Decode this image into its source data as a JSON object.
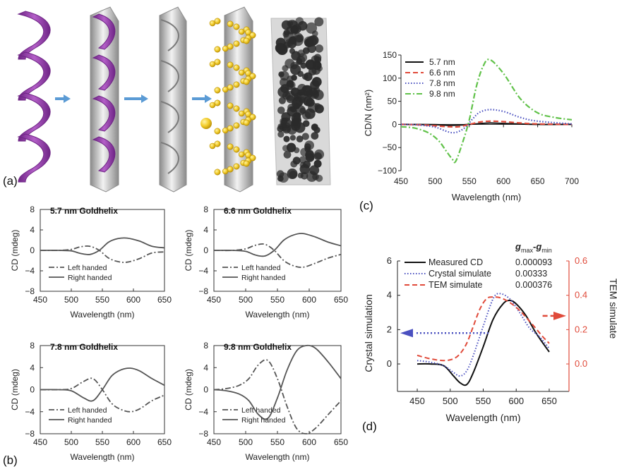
{
  "colors": {
    "purple": "#9b3fb0",
    "purple_dark": "#6e2485",
    "silver": "#c9c9c9",
    "silver_dark": "#8d8d8d",
    "gold": "#f2cc2a",
    "gold_dark": "#b88e08",
    "arrow": "#5b9bd5",
    "tem_bg": "#d9d9d9",
    "tem_particle": "#2b2b2b",
    "line_black": "#111111",
    "dash_red": "#e04a3a",
    "dot_blue": "#4a50c0",
    "dashdot_green": "#61c24a",
    "axis_red": "#e04a3a"
  },
  "panels": {
    "a": "(a)",
    "b": "(b)",
    "c": "(c)",
    "d": "(d)"
  },
  "illustration": {
    "stages": [
      "purple-helix-template",
      "coated-helix",
      "silver-helix",
      "gold-nanoparticle-helix",
      "tem-micrograph"
    ]
  },
  "chart_data": [
    {
      "id": "c",
      "type": "line",
      "xlabel": "Wavelength (nm)",
      "ylabel": "CD/N (nm²)",
      "xlim": [
        450,
        700
      ],
      "ylim": [
        -100,
        150
      ],
      "xticks": [
        450,
        500,
        550,
        600,
        650,
        700
      ],
      "yticks": [
        -100,
        -50,
        0,
        50,
        100,
        150
      ],
      "yticklabels": [
        "−100",
        "−50",
        "0",
        "50",
        "100",
        "150"
      ],
      "legend_position": "top-left",
      "series": [
        {
          "name": "5.7 nm",
          "style": "solid",
          "color": "#111111",
          "x": [
            450,
            500,
            520,
            540,
            560,
            580,
            600,
            650,
            700
          ],
          "y": [
            0,
            -0.5,
            -2,
            -1,
            1,
            3,
            2,
            0,
            0
          ]
        },
        {
          "name": "6.6 nm",
          "style": "dash",
          "color": "#e04a3a",
          "x": [
            450,
            480,
            500,
            520,
            535,
            550,
            565,
            580,
            600,
            625,
            650,
            700
          ],
          "y": [
            0,
            -1,
            -3,
            -5,
            -5,
            0,
            5,
            7,
            6,
            3,
            1,
            0
          ]
        },
        {
          "name": "7.8 nm",
          "style": "dot",
          "color": "#4a50c0",
          "x": [
            450,
            475,
            500,
            515,
            525,
            535,
            545,
            555,
            565,
            580,
            600,
            625,
            650,
            700
          ],
          "y": [
            0,
            -1,
            -6,
            -14,
            -18,
            -15,
            -5,
            12,
            26,
            32,
            28,
            15,
            7,
            1
          ]
        },
        {
          "name": "9.8 nm",
          "style": "dashdot",
          "color": "#61c24a",
          "x": [
            450,
            470,
            490,
            505,
            515,
            525,
            530,
            540,
            550,
            560,
            570,
            580,
            600,
            625,
            650,
            675,
            700
          ],
          "y": [
            -5,
            -8,
            -18,
            -35,
            -55,
            -75,
            -80,
            -40,
            10,
            80,
            125,
            140,
            110,
            55,
            25,
            15,
            10
          ]
        }
      ]
    },
    {
      "id": "b1",
      "type": "line",
      "title": "5.7 nm Goldhelix",
      "xlabel": "Wavelength (nm)",
      "ylabel": "CD (mdeg)",
      "xlim": [
        450,
        650
      ],
      "ylim": [
        -8,
        8
      ],
      "xticks": [
        450,
        500,
        550,
        600,
        650
      ],
      "yticks": [
        8,
        4,
        0,
        -4,
        -8
      ],
      "yticklabels": [
        "8",
        "4",
        "0",
        "−4",
        "−8"
      ],
      "legend": [
        "Left handed",
        "Right handed"
      ],
      "series": [
        {
          "name": "Left handed",
          "style": "dashdot",
          "x": [
            450,
            480,
            500,
            515,
            530,
            545,
            560,
            575,
            590,
            610,
            630,
            650
          ],
          "y": [
            0,
            0,
            0.2,
            0.7,
            0.8,
            0,
            -1.5,
            -2.2,
            -2.3,
            -1.6,
            -0.5,
            -0.3
          ]
        },
        {
          "name": "Right handed",
          "style": "solid",
          "x": [
            450,
            480,
            500,
            515,
            530,
            545,
            560,
            575,
            590,
            610,
            630,
            650
          ],
          "y": [
            0,
            0,
            -0.1,
            -0.6,
            -0.8,
            0,
            1.6,
            2.3,
            2.4,
            1.8,
            0.8,
            0.5
          ]
        }
      ]
    },
    {
      "id": "b2",
      "type": "line",
      "title": "6.6 nm Goldhelix",
      "xlabel": "Wavelength (nm)",
      "ylabel": "CD (mdeg)",
      "xlim": [
        450,
        650
      ],
      "ylim": [
        -8,
        8
      ],
      "xticks": [
        450,
        500,
        550,
        600,
        650
      ],
      "yticks": [
        8,
        4,
        0,
        -4,
        -8
      ],
      "yticklabels": [
        "8",
        "4",
        "0",
        "−4",
        "−8"
      ],
      "legend": [
        "Left handed",
        "Right handed"
      ],
      "series": [
        {
          "name": "Left handed",
          "style": "dashdot",
          "x": [
            450,
            480,
            500,
            515,
            530,
            545,
            560,
            575,
            590,
            610,
            630,
            650
          ],
          "y": [
            0,
            0,
            0.3,
            1,
            1.2,
            0,
            -2,
            -3,
            -3.3,
            -2.5,
            -1.5,
            -0.8
          ]
        },
        {
          "name": "Right handed",
          "style": "solid",
          "x": [
            450,
            480,
            500,
            515,
            530,
            545,
            560,
            575,
            590,
            610,
            630,
            650
          ],
          "y": [
            0,
            0,
            -0.2,
            -0.9,
            -1.1,
            0,
            2,
            3,
            3.3,
            2.6,
            1.6,
            0.9
          ]
        }
      ]
    },
    {
      "id": "b3",
      "type": "line",
      "title": "7.8 nm Goldhelix",
      "xlabel": "Wavelength (nm)",
      "ylabel": "CD (mdeg)",
      "xlim": [
        450,
        650
      ],
      "ylim": [
        -8,
        8
      ],
      "xticks": [
        450,
        500,
        550,
        600,
        650
      ],
      "yticks": [
        8,
        4,
        0,
        -4,
        -8
      ],
      "yticklabels": [
        "8",
        "4",
        "0",
        "−4",
        "−8"
      ],
      "legend": [
        "Left handed",
        "Right handed"
      ],
      "series": [
        {
          "name": "Left handed",
          "style": "dashdot",
          "x": [
            450,
            480,
            500,
            520,
            535,
            550,
            565,
            580,
            595,
            610,
            630,
            650
          ],
          "y": [
            0,
            0,
            0.2,
            1.5,
            2,
            0,
            -2.5,
            -3.6,
            -4,
            -3.5,
            -2,
            -1
          ]
        },
        {
          "name": "Right handed",
          "style": "solid",
          "x": [
            450,
            480,
            500,
            520,
            535,
            550,
            565,
            580,
            595,
            610,
            630,
            650
          ],
          "y": [
            0,
            0,
            -0.2,
            -1.5,
            -2,
            0,
            2.5,
            3.6,
            3.9,
            3.4,
            2,
            0.8
          ]
        }
      ]
    },
    {
      "id": "b4",
      "type": "line",
      "title": "9.8 nm Goldhelix",
      "xlabel": "Wavelength (nm)",
      "ylabel": "CD (mdeg)",
      "xlim": [
        450,
        650
      ],
      "ylim": [
        -8,
        8
      ],
      "xticks": [
        450,
        500,
        550,
        600,
        650
      ],
      "yticks": [
        8,
        4,
        0,
        -4,
        -8
      ],
      "yticklabels": [
        "8",
        "4",
        "0",
        "−4",
        "−8"
      ],
      "legend": [
        "Left handed",
        "Right handed"
      ],
      "series": [
        {
          "name": "Left handed",
          "style": "dashdot",
          "x": [
            450,
            470,
            490,
            505,
            520,
            535,
            550,
            565,
            580,
            595,
            610,
            630,
            650
          ],
          "y": [
            0,
            0.2,
            0.8,
            2,
            4.5,
            5.3,
            2,
            -3,
            -7,
            -8,
            -7,
            -4.5,
            -2
          ]
        },
        {
          "name": "Right handed",
          "style": "solid",
          "x": [
            450,
            470,
            490,
            505,
            520,
            535,
            550,
            565,
            580,
            595,
            610,
            630,
            650
          ],
          "y": [
            0,
            -0.2,
            -0.8,
            -2,
            -4.5,
            -5.2,
            -1.5,
            3.5,
            7,
            8,
            7.5,
            5,
            2
          ]
        }
      ]
    },
    {
      "id": "d",
      "type": "line",
      "xlabel": "Wavelength (nm)",
      "ylabel_left": "Crystal simulation",
      "ylabel_right": "TEM simulate",
      "xlim": [
        420,
        680
      ],
      "ylim_left": [
        -1.6,
        6
      ],
      "ylim_right": [
        -0.16,
        0.6
      ],
      "xticks": [
        450,
        500,
        550,
        600,
        650
      ],
      "yticks_left": [
        0,
        2,
        4,
        6
      ],
      "yticks_right": [
        0.0,
        0.2,
        0.4,
        0.6
      ],
      "yticklabels_right": [
        "0.0",
        "0.2",
        "0.4",
        "0.6"
      ],
      "legend_header": "gmax-gmin",
      "legend_header_parts": {
        "g1": "g",
        "sub1": "max",
        "dash": "-",
        "g2": "g",
        "sub2": "min"
      },
      "series": [
        {
          "name": "Measured CD",
          "value": "0.000093",
          "style": "solid",
          "color": "#111111",
          "axis": "left",
          "x": [
            450,
            470,
            490,
            505,
            515,
            525,
            535,
            550,
            565,
            580,
            590,
            600,
            615,
            630,
            650
          ],
          "y": [
            0,
            0,
            -0.1,
            -0.7,
            -1.1,
            -1.2,
            -0.5,
            1,
            2.6,
            3.5,
            3.7,
            3.5,
            2.8,
            1.8,
            0.7
          ]
        },
        {
          "name": "Crystal simulate",
          "value": "0.00333",
          "style": "dot",
          "color": "#4a50c0",
          "axis": "left",
          "x": [
            450,
            470,
            490,
            505,
            515,
            525,
            535,
            550,
            565,
            575,
            590,
            605,
            620,
            635,
            650
          ],
          "y": [
            0.2,
            0.1,
            -0.1,
            -0.5,
            -0.7,
            -0.4,
            0.5,
            2.2,
            3.8,
            4.1,
            3.8,
            3,
            2.1,
            1.6,
            0.9
          ]
        },
        {
          "name": "TEM simulate",
          "value": "0.000376",
          "style": "dash",
          "color": "#e04a3a",
          "axis": "right",
          "x": [
            450,
            470,
            490,
            505,
            515,
            525,
            535,
            545,
            555,
            565,
            580,
            600,
            620,
            640,
            650
          ],
          "y": [
            0.05,
            0.03,
            0.02,
            0.03,
            0.06,
            0.12,
            0.22,
            0.32,
            0.38,
            0.39,
            0.38,
            0.33,
            0.25,
            0.16,
            0.12
          ]
        }
      ],
      "annotations": [
        {
          "kind": "arrow",
          "color": "#4a50c0",
          "direction": "left",
          "points_to": "left-axis"
        },
        {
          "kind": "arrow",
          "color": "#e04a3a",
          "direction": "right",
          "points_to": "right-axis"
        }
      ]
    }
  ]
}
